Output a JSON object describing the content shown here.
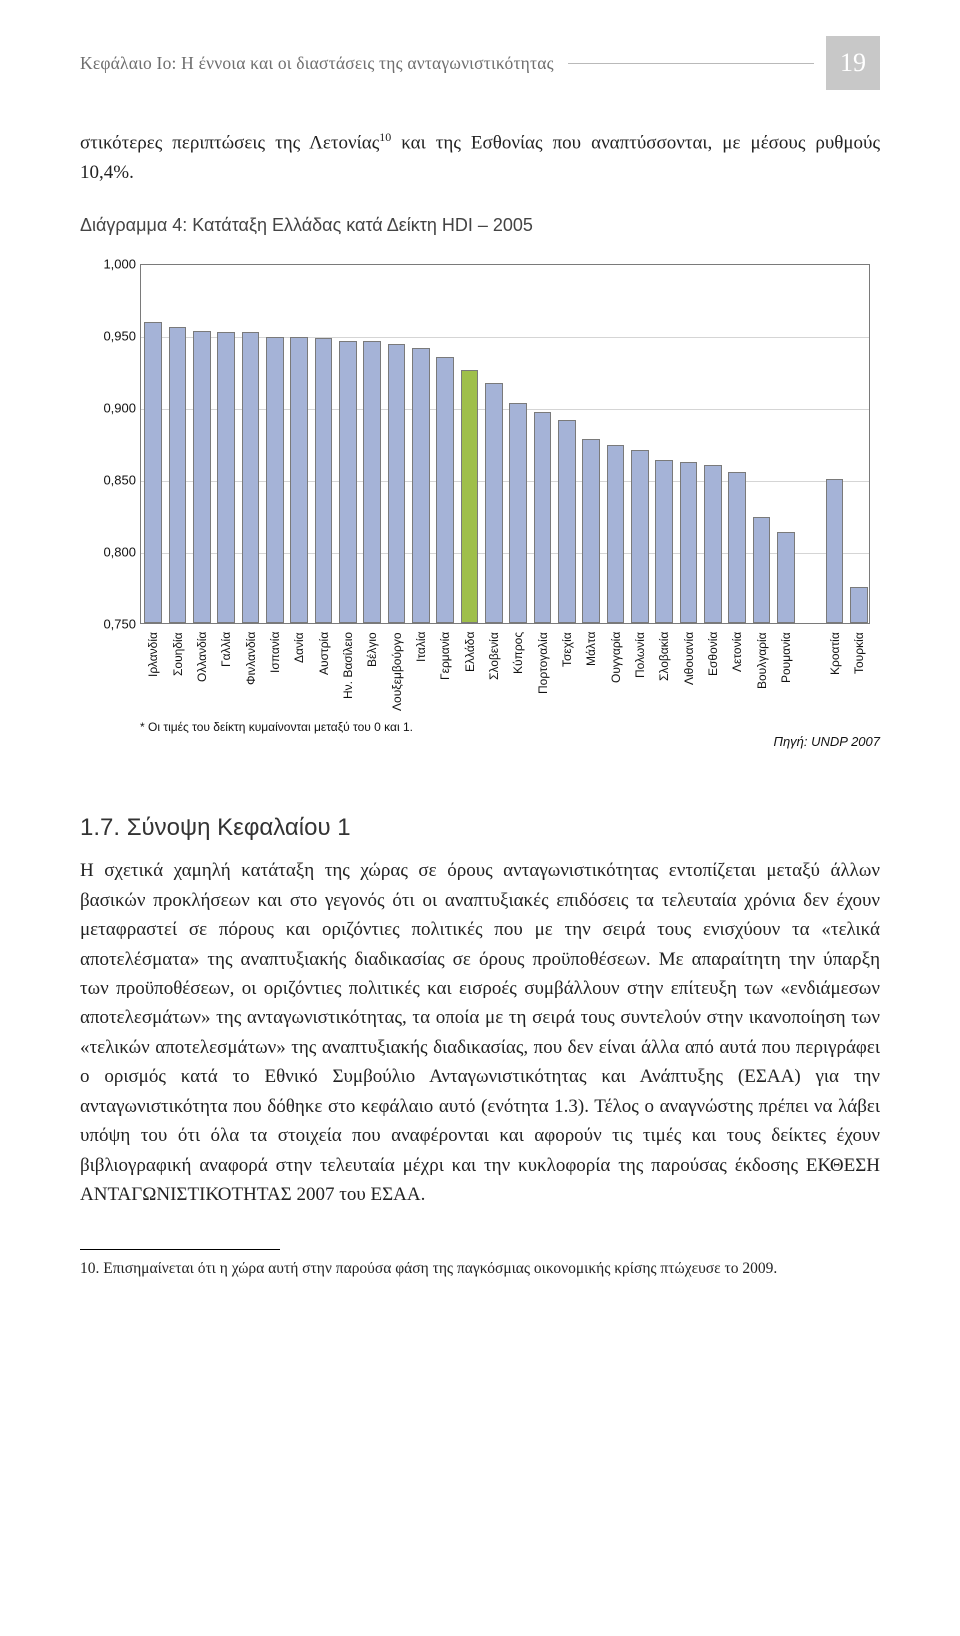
{
  "running_head": "Κεφάλαιο Ιο: Η έννοια και οι διαστάσεις της ανταγωνιστικότητας",
  "page_number": "19",
  "intro_paragraph_a": "στικότερες περιπτώσεις της Λετονίας",
  "intro_sup": "10",
  "intro_paragraph_b": " και της Εσθονίας που αναπτύσσονται, με μέσους ρυθμούς 10,4%.",
  "chart": {
    "caption": "Διάγραμμα 4: Κατάταξη Ελλάδας κατά Δείκτη HDI – 2005",
    "ylim_min": 0.75,
    "ylim_max": 1.0,
    "ytick_step": 0.05,
    "yticks": [
      "1,000",
      "0,950",
      "0,900",
      "0,850",
      "0,800",
      "0,750"
    ],
    "bar_color": "#a5b3d7",
    "bar_color_highlight": "#9fbf4a",
    "border_color": "#7a7a7a",
    "gridline_color": "#d5d5d5",
    "background_color": "#ffffff",
    "label_fontsize": 12,
    "tick_fontsize": 13,
    "categories": [
      {
        "label": "Ιρλανδία",
        "value": 0.959,
        "highlight": false
      },
      {
        "label": "Σουηδία",
        "value": 0.956,
        "highlight": false
      },
      {
        "label": "Ολλανδία",
        "value": 0.953,
        "highlight": false
      },
      {
        "label": "Γαλλία",
        "value": 0.952,
        "highlight": false
      },
      {
        "label": "Φινλανδία",
        "value": 0.952,
        "highlight": false
      },
      {
        "label": "Ισπανία",
        "value": 0.949,
        "highlight": false
      },
      {
        "label": "Δανία",
        "value": 0.949,
        "highlight": false
      },
      {
        "label": "Αυστρία",
        "value": 0.948,
        "highlight": false
      },
      {
        "label": "Ην. Βασίλειο",
        "value": 0.946,
        "highlight": false
      },
      {
        "label": "Βέλγιο",
        "value": 0.946,
        "highlight": false
      },
      {
        "label": "Λουξεμβούργο",
        "value": 0.944,
        "highlight": false
      },
      {
        "label": "Ιταλία",
        "value": 0.941,
        "highlight": false
      },
      {
        "label": "Γερμανία",
        "value": 0.935,
        "highlight": false
      },
      {
        "label": "Ελλάδα",
        "value": 0.926,
        "highlight": true
      },
      {
        "label": "Σλοβενία",
        "value": 0.917,
        "highlight": false
      },
      {
        "label": "Κύπρος",
        "value": 0.903,
        "highlight": false
      },
      {
        "label": "Πορτογαλία",
        "value": 0.897,
        "highlight": false
      },
      {
        "label": "Τσεχία",
        "value": 0.891,
        "highlight": false
      },
      {
        "label": "Μάλτα",
        "value": 0.878,
        "highlight": false
      },
      {
        "label": "Ουγγαρία",
        "value": 0.874,
        "highlight": false
      },
      {
        "label": "Πολωνία",
        "value": 0.87,
        "highlight": false
      },
      {
        "label": "Σλοβακία",
        "value": 0.863,
        "highlight": false
      },
      {
        "label": "Λιθουανία",
        "value": 0.862,
        "highlight": false
      },
      {
        "label": "Εσθονία",
        "value": 0.86,
        "highlight": false
      },
      {
        "label": "Λετονία",
        "value": 0.855,
        "highlight": false
      },
      {
        "label": "Βουλγαρία",
        "value": 0.824,
        "highlight": false
      },
      {
        "label": "Ρουμανία",
        "value": 0.813,
        "highlight": false
      },
      {
        "label": "Κροατία",
        "value": 0.85,
        "highlight": false,
        "gap_before": true
      },
      {
        "label": "Τουρκία",
        "value": 0.775,
        "highlight": false
      }
    ],
    "footnote": "* Οι τιμές του δείκτη κυμαίνονται μεταξύ του 0 και 1.",
    "source": "Πηγή: UNDP 2007"
  },
  "section_heading": "1.7. Σύνοψη Κεφαλαίου 1",
  "body_text": "Η σχετικά χαμηλή κατάταξη της χώρας σε όρους ανταγωνιστικότητας εντοπίζεται μεταξύ άλλων βασικών προκλήσεων και στο γεγονός ότι οι αναπτυξιακές επιδόσεις τα τελευταία χρόνια δεν έχουν μεταφραστεί σε πόρους και οριζόντιες πολιτικές που με την σειρά τους ενισχύουν τα «τελικά αποτελέσματα» της αναπτυξιακής διαδικασίας σε όρους προϋποθέσεων. Με απαραίτητη την ύπαρξη των προϋποθέσεων, οι οριζόντιες πολιτικές και εισροές συμβάλλουν στην επίτευξη των «ενδιάμεσων αποτελεσμάτων» της ανταγωνιστικότητας, τα οποία με τη σειρά τους συντελούν στην ικανοποίηση των «τελικών αποτελεσμάτων» της αναπτυξιακής διαδικασίας, που δεν είναι άλλα από αυτά που περιγράφει ο ορισμός κατά το Εθνικό Συμβούλιο Ανταγωνιστικότητας και Ανάπτυξης (ΕΣΑΑ) για την ανταγωνιστικότητα που δόθηκε στο κεφάλαιο αυτό (ενότητα 1.3). Τέλος ο αναγνώστης πρέπει να λάβει υπόψη του ότι όλα τα στοιχεία που αναφέρονται και αφορούν τις τιμές και τους δείκτες έχουν βιβλιογραφική αναφορά στην τελευταία μέχρι και την κυκλοφορία της παρούσας έκδοσης ΕΚΘΕΣΗ ΑΝΤΑΓΩΝΙΣΤΙΚΟΤΗΤΑΣ 2007 του ΕΣΑΑ.",
  "page_footnote": "10.  Επισημαίνεται ότι η χώρα αυτή στην παρούσα φάση της παγκόσμιας οικονομικής κρίσης πτώχευσε το 2009."
}
